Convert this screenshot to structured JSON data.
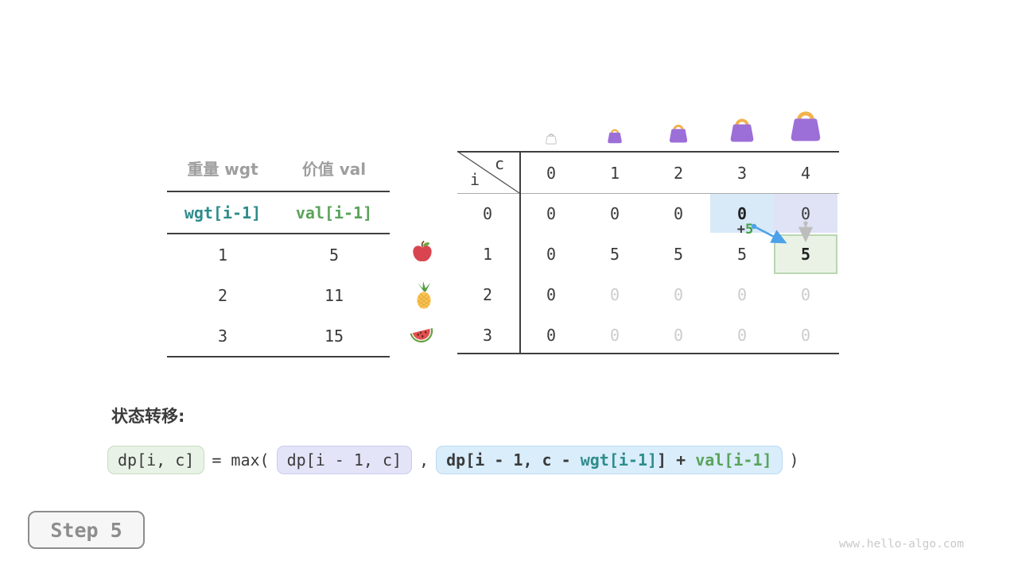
{
  "items_table": {
    "col_headers": [
      "重量 wgt",
      "价值 val"
    ],
    "sub_headers": [
      "wgt[i-1]",
      "val[i-1]"
    ],
    "rows": [
      [
        "1",
        "5"
      ],
      [
        "2",
        "11"
      ],
      [
        "3",
        "15"
      ]
    ],
    "fruit_icons": [
      "apple-icon",
      "pineapple-icon",
      "watermelon-icon"
    ]
  },
  "dp_table": {
    "corner": {
      "col_label": "c",
      "row_label": "i"
    },
    "col_headers": [
      "0",
      "1",
      "2",
      "3",
      "4"
    ],
    "row_headers": [
      "0",
      "1",
      "2",
      "3"
    ],
    "cells": [
      [
        {
          "v": "0"
        },
        {
          "v": "0"
        },
        {
          "v": "0"
        },
        {
          "v": "0",
          "bold": true,
          "hl": "blue"
        },
        {
          "v": "0",
          "hl": "lavender"
        }
      ],
      [
        {
          "v": "0"
        },
        {
          "v": "5"
        },
        {
          "v": "5"
        },
        {
          "v": "5"
        },
        {
          "v": "5",
          "bold": true,
          "hl": "green"
        }
      ],
      [
        {
          "v": "0"
        },
        {
          "v": "0",
          "faded": true
        },
        {
          "v": "0",
          "faded": true
        },
        {
          "v": "0",
          "faded": true
        },
        {
          "v": "0",
          "faded": true
        }
      ],
      [
        {
          "v": "0"
        },
        {
          "v": "0",
          "faded": true
        },
        {
          "v": "0",
          "faded": true
        },
        {
          "v": "0",
          "faded": true
        },
        {
          "v": "0",
          "faded": true
        }
      ]
    ],
    "annotation": {
      "plus": "+",
      "value": "5"
    },
    "capacity_icons": [
      "bag-capacity-0-icon",
      "bag-capacity-1-icon",
      "bag-capacity-2-icon",
      "bag-capacity-3-icon",
      "bag-capacity-4-icon"
    ]
  },
  "formula": {
    "label": "状态转移:",
    "result_box": "dp[i, c]",
    "operator": "= max(",
    "option1_box": "dp[i - 1, c]",
    "comma": ",",
    "option2_segments": [
      {
        "text": "dp[i - 1, c - ",
        "color": "dark"
      },
      {
        "text": "wgt[i-1]",
        "color": "teal"
      },
      {
        "text": "] + ",
        "color": "dark"
      },
      {
        "text": "val[i-1]",
        "color": "green"
      }
    ],
    "close_paren": ")"
  },
  "step_indicator": {
    "label": "Step 5"
  },
  "footer": {
    "watermark": "www.hello-algo.com"
  },
  "colors": {
    "accent_teal": "#2e8c8c",
    "accent_green": "#5aa35a",
    "text_dark": "#3b3b3b",
    "text_gray": "#9e9e9e",
    "text_faded": "#cccccc",
    "hl_blue": "#d8e9f8",
    "hl_lavender": "#e0e2f6",
    "hl_green_bg": "#eaf2e6",
    "hl_green_border": "#b9d6b2",
    "box_green_bg": "#e9f2e6",
    "box_green_border": "#c6dec0",
    "box_lavender_bg": "#e3e4f8",
    "box_lavender_border": "#cacbec",
    "box_blue_bg": "#d9edfb",
    "box_blue_border": "#badbf3",
    "arrow_blue": "#4ba2e8",
    "arrow_gray": "#bdbdbd",
    "bag_purple": "#9c6fd8",
    "bag_handle": "#f2b24f",
    "plus_green": "#43a047"
  }
}
